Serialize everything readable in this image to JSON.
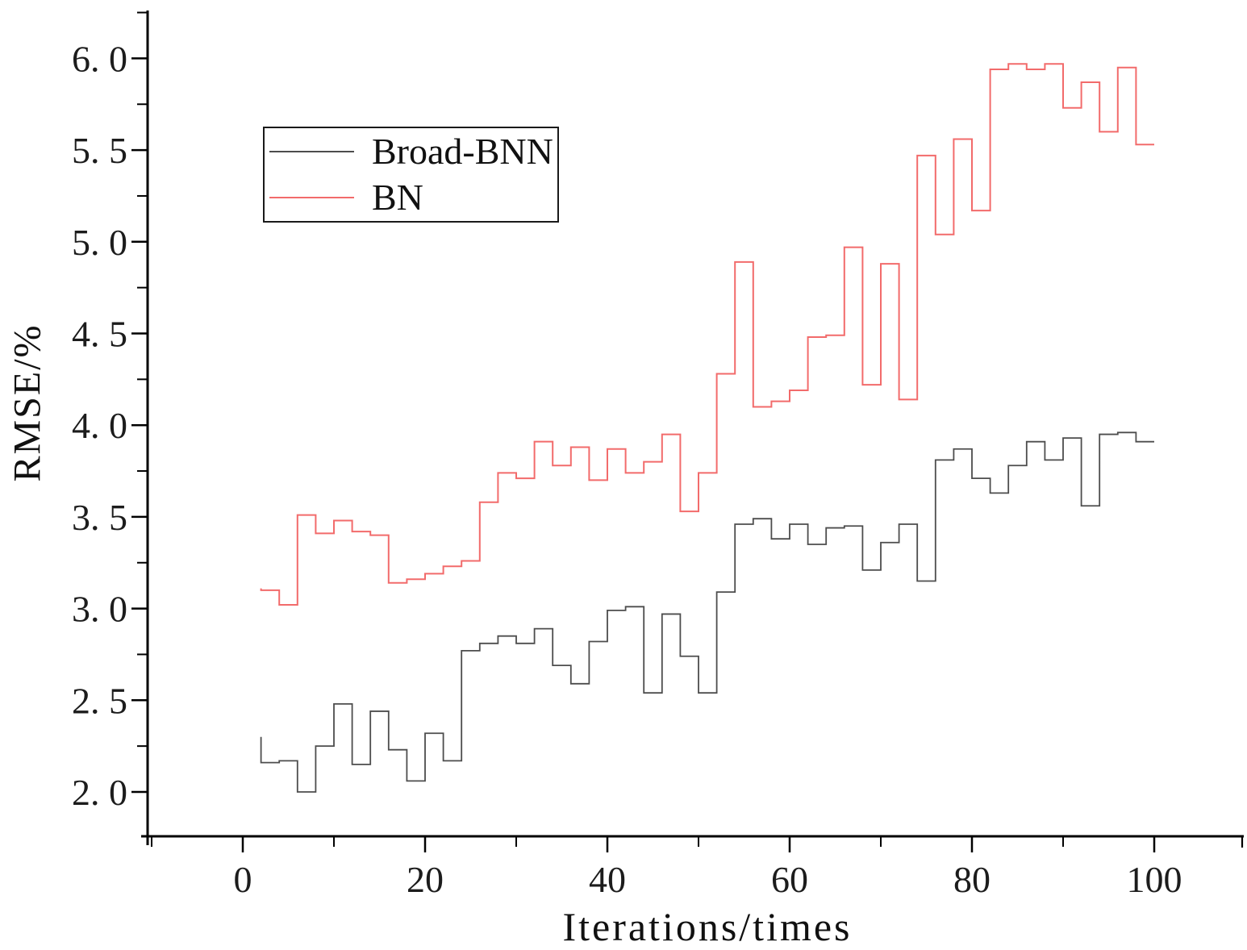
{
  "chart_data": {
    "type": "line",
    "step_style": "pre",
    "title": "",
    "xlabel": "Iterations/times",
    "ylabel": "RMSE/%",
    "grid": false,
    "legend_position": "upper-left-inside",
    "xlim": [
      -10.4,
      109.8
    ],
    "ylim": [
      1.76,
      6.26
    ],
    "x_major_ticks": [
      0,
      20,
      40,
      60,
      80,
      100
    ],
    "x_tick_labels": [
      "0",
      "20",
      "40",
      "60",
      "80",
      "100"
    ],
    "x_minor_ticks": [
      -10,
      10,
      30,
      50,
      70,
      90
    ],
    "y_major_ticks": [
      2.0,
      2.5,
      3.0,
      3.5,
      4.0,
      4.5,
      5.0,
      5.5,
      6.0
    ],
    "y_tick_labels": [
      "2. 0",
      "2. 5",
      "3. 0",
      "3. 5",
      "4. 0",
      "4. 5",
      "5. 0",
      "5. 5",
      "6. 0"
    ],
    "y_minor_ticks": [
      2.25,
      2.75,
      3.25,
      3.75,
      4.25,
      4.75,
      5.25,
      5.75,
      6.25
    ],
    "x": [
      2,
      4,
      6,
      8,
      10,
      12,
      14,
      16,
      18,
      20,
      22,
      24,
      26,
      28,
      30,
      32,
      34,
      36,
      38,
      40,
      42,
      44,
      46,
      48,
      50,
      52,
      54,
      56,
      58,
      60,
      62,
      64,
      66,
      68,
      70,
      72,
      74,
      76,
      78,
      80,
      82,
      84,
      86,
      88,
      90,
      92,
      94,
      96,
      98,
      100
    ],
    "series": [
      {
        "name": "Broad-BNN",
        "color": "#4d4d4d",
        "width": 1.8,
        "values": [
          2.3,
          2.16,
          2.17,
          2.0,
          2.25,
          2.48,
          2.15,
          2.44,
          2.23,
          2.06,
          2.32,
          2.17,
          2.77,
          2.81,
          2.85,
          2.81,
          2.89,
          2.69,
          2.59,
          2.82,
          2.99,
          3.01,
          2.54,
          2.97,
          2.74,
          2.54,
          3.09,
          3.46,
          3.49,
          3.38,
          3.46,
          3.35,
          3.44,
          3.45,
          3.21,
          3.36,
          3.46,
          3.15,
          3.81,
          3.87,
          3.71,
          3.63,
          3.78,
          3.91,
          3.81,
          3.93,
          3.56,
          3.95,
          3.96,
          3.91
        ]
      },
      {
        "name": "BN",
        "color": "#f26b6b",
        "width": 2,
        "values": [
          3.11,
          3.1,
          3.02,
          3.51,
          3.41,
          3.48,
          3.42,
          3.4,
          3.14,
          3.16,
          3.19,
          3.23,
          3.26,
          3.58,
          3.74,
          3.71,
          3.91,
          3.78,
          3.88,
          3.7,
          3.87,
          3.74,
          3.8,
          3.95,
          3.53,
          3.74,
          4.28,
          4.89,
          4.1,
          4.13,
          4.19,
          4.48,
          4.49,
          4.97,
          4.22,
          4.88,
          4.14,
          5.47,
          5.04,
          5.56,
          5.17,
          5.94,
          5.97,
          5.94,
          5.97,
          5.73,
          5.87,
          5.6,
          5.95,
          5.53
        ]
      }
    ]
  },
  "legend": {
    "entries": [
      {
        "label": "Broad-BNN",
        "color": "#4d4d4d"
      },
      {
        "label": "BN",
        "color": "#f26b6b"
      }
    ]
  },
  "colors": {
    "axis": "#000000",
    "background": "#ffffff",
    "tick_text": "#1c1c1c"
  }
}
